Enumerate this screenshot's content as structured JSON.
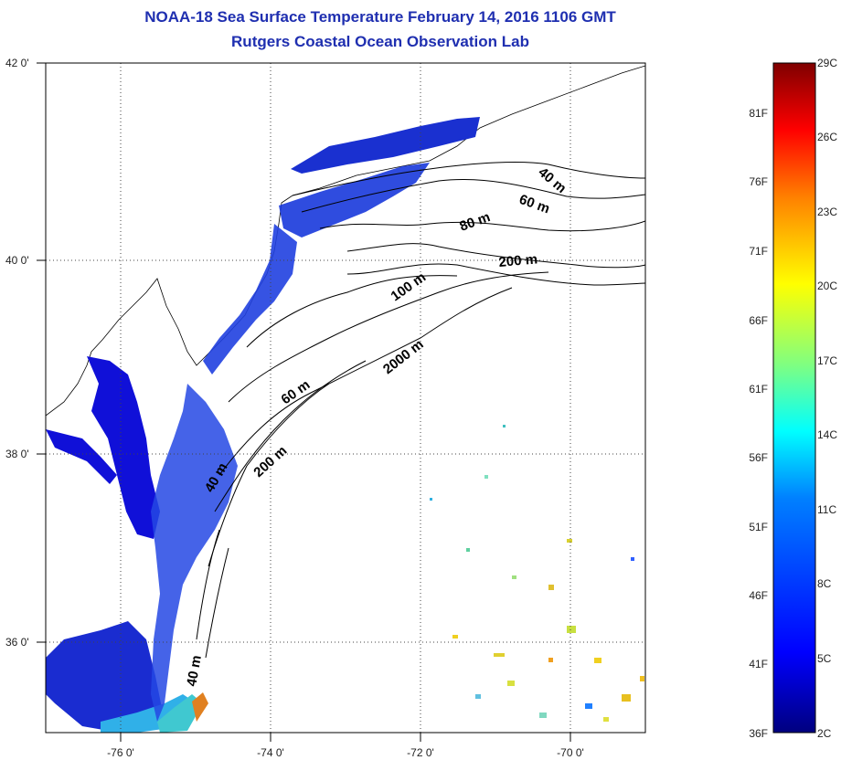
{
  "title": "NOAA-18 Sea Surface Temperature February 14, 2016 1106 GMT",
  "subtitle": "Rutgers Coastal Ocean Observation Lab",
  "map": {
    "lat_labels": [
      "42 0'",
      "40 0'",
      "38 0'",
      "36 0'"
    ],
    "lon_labels": [
      "-76 0'",
      "-74 0'",
      "-72 0'",
      "-70 0'"
    ],
    "lat_range": [
      35.0,
      42.0
    ],
    "lon_range": [
      -77.0,
      -69.0
    ],
    "grid": "dotted",
    "isobaths": [
      {
        "label": "40 m"
      },
      {
        "label": "60 m"
      },
      {
        "label": "80 m"
      },
      {
        "label": "200 m"
      },
      {
        "label": "100 m"
      },
      {
        "label": "2000 m"
      },
      {
        "label": "60 m"
      },
      {
        "label": "200 m"
      },
      {
        "label": "40 m"
      },
      {
        "label": "40 m"
      }
    ]
  },
  "colorbar": {
    "fahrenheit": [
      "81F",
      "76F",
      "71F",
      "66F",
      "61F",
      "56F",
      "51F",
      "46F",
      "41F",
      "36F"
    ],
    "celsius": [
      "29C",
      "26C",
      "23C",
      "20C",
      "17C",
      "14C",
      "11C",
      "8C",
      "5C",
      "2C"
    ],
    "range_c": [
      2,
      29
    ],
    "colors": [
      "#00007f",
      "#0000ff",
      "#0080ff",
      "#00ffff",
      "#80ff80",
      "#ffff00",
      "#ff8000",
      "#ff0000",
      "#7f0000"
    ]
  }
}
